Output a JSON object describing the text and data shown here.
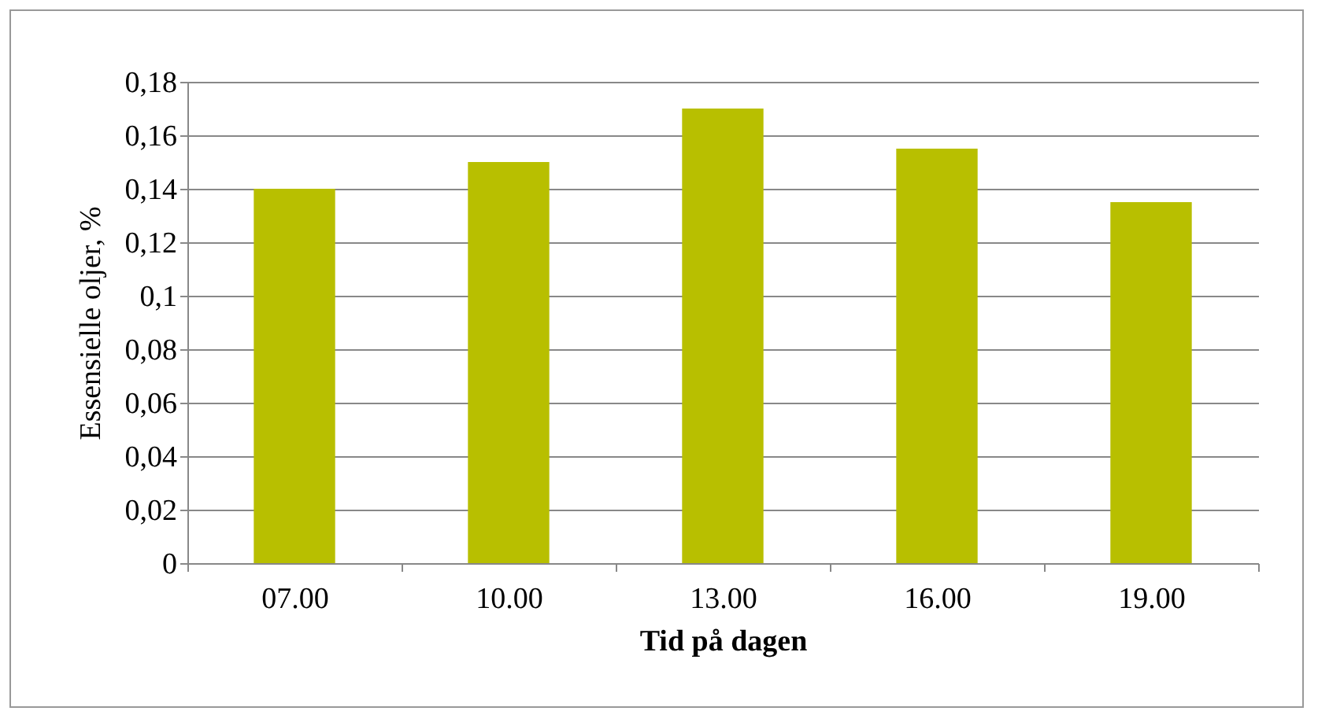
{
  "chart_data": {
    "type": "bar",
    "xlabel": "Tid på dagen",
    "ylabel": "Essensielle oljer, %",
    "categories": [
      "07.00",
      "10.00",
      "13.00",
      "16.00",
      "19.00"
    ],
    "values": [
      0.14,
      0.15,
      0.17,
      0.155,
      0.135
    ],
    "color": "#b8bf00",
    "ylim": [
      0,
      0.18
    ],
    "yticks": [
      {
        "value": 0,
        "label": "0"
      },
      {
        "value": 0.02,
        "label": "0,02"
      },
      {
        "value": 0.04,
        "label": "0,04"
      },
      {
        "value": 0.06,
        "label": "0,06"
      },
      {
        "value": 0.08,
        "label": "0,08"
      },
      {
        "value": 0.1,
        "label": "0,1"
      },
      {
        "value": 0.12,
        "label": "0,12"
      },
      {
        "value": 0.14,
        "label": "0,14"
      },
      {
        "value": 0.16,
        "label": "0,16"
      },
      {
        "value": 0.18,
        "label": "0,18"
      }
    ],
    "grid": "y"
  }
}
